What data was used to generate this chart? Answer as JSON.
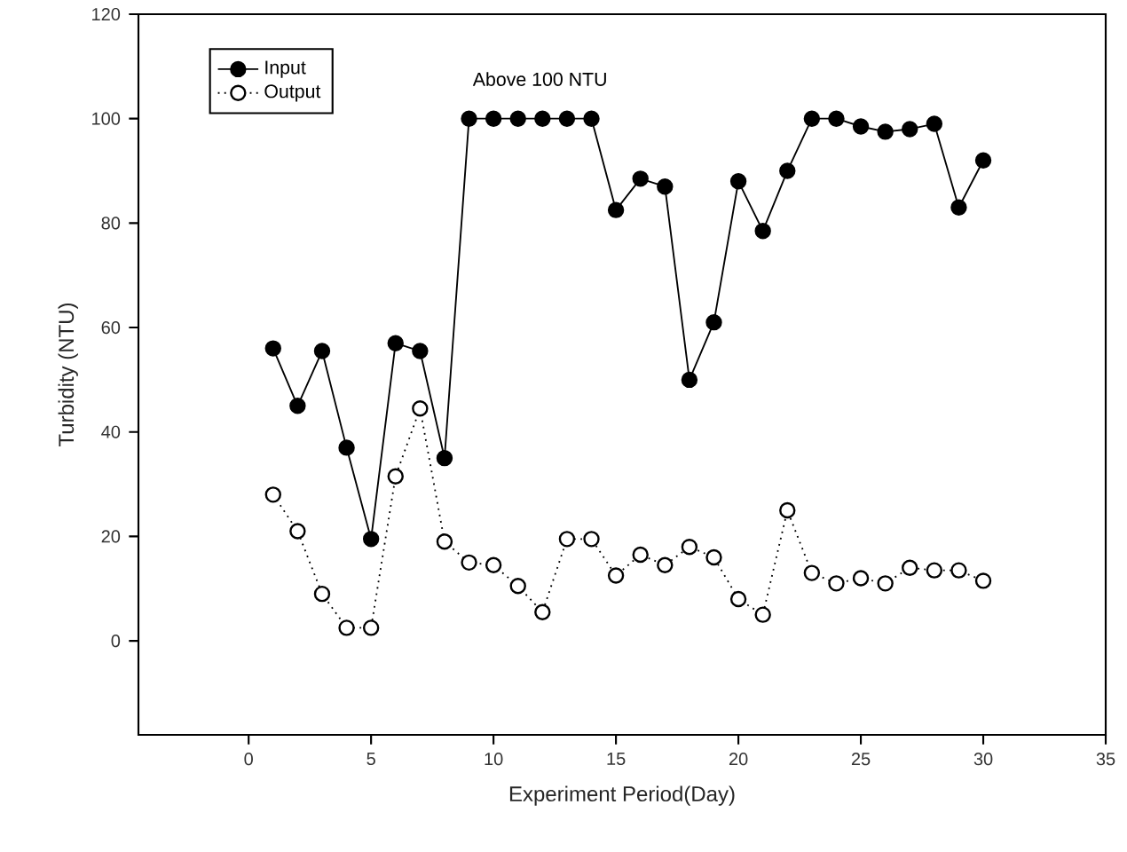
{
  "chart_data": {
    "type": "line",
    "xlabel": "Experiment Period(Day)",
    "ylabel": "Turbidity (NTU)",
    "x": [
      1,
      2,
      3,
      4,
      5,
      6,
      7,
      8,
      9,
      10,
      11,
      12,
      13,
      14,
      15,
      16,
      17,
      18,
      19,
      20,
      21,
      22,
      23,
      24,
      25,
      26,
      27,
      28,
      29,
      30
    ],
    "series": [
      {
        "name": "Input",
        "color": "#000000",
        "line_style": "solid",
        "values": [
          56,
          45,
          55.5,
          37,
          19.5,
          57,
          55.5,
          35,
          100,
          100,
          100,
          100,
          100,
          100,
          82.5,
          88.5,
          87,
          50,
          61,
          88,
          78.5,
          90,
          100,
          100,
          98.5,
          97.5,
          98,
          99,
          83,
          92
        ]
      },
      {
        "name": "Output",
        "color": "#000000",
        "line_style": "dotted",
        "values": [
          28,
          21,
          9,
          2.5,
          2.5,
          31.5,
          44.5,
          19,
          15,
          14.5,
          10.5,
          5.5,
          19.5,
          19.5,
          12.5,
          16.5,
          14.5,
          18,
          16,
          8,
          5,
          25,
          13,
          11,
          12,
          11,
          14,
          13.5,
          13.5,
          11.5
        ]
      }
    ],
    "xlim": [
      -4.5,
      35
    ],
    "ylim": [
      -18,
      120
    ],
    "xticks": [
      0,
      5,
      10,
      15,
      20,
      25,
      30,
      35
    ],
    "yticks": [
      0,
      20,
      40,
      60,
      80,
      100,
      120
    ],
    "annotations": [
      "Above 100 NTU"
    ],
    "marker": "circle",
    "grid": false,
    "legend": "top left"
  }
}
